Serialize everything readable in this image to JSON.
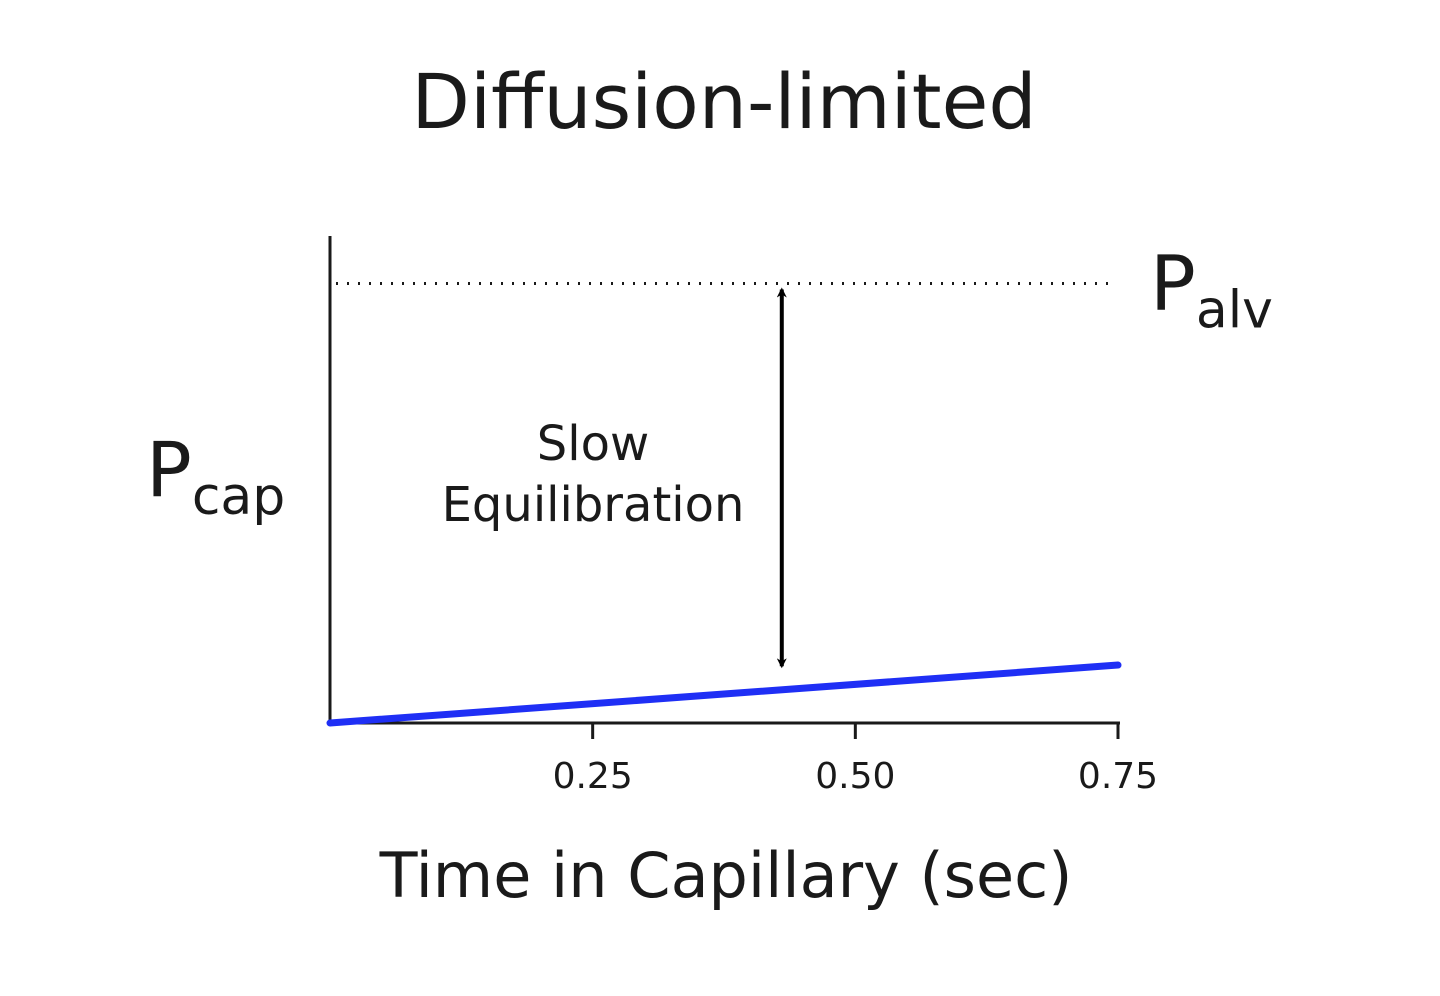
{
  "chart_data": {
    "type": "line",
    "title": "Diffusion-limited",
    "xlabel": "Time in Capillary (sec)",
    "ylabel": {
      "main": "P",
      "sub": "cap"
    },
    "xlim": [
      0,
      0.75
    ],
    "ylim": [
      0,
      1
    ],
    "xticks": [
      {
        "value": 0.25,
        "label": "0.25"
      },
      {
        "value": 0.5,
        "label": "0.50"
      },
      {
        "value": 0.75,
        "label": "0.75"
      }
    ],
    "grid": false,
    "series": [
      {
        "x": [
          0,
          0.75
        ],
        "y": [
          0,
          0.12
        ],
        "color": "#1f2ff5"
      }
    ],
    "reference_line": {
      "y": 0.91,
      "style": "dotted",
      "label": {
        "main": "P",
        "sub": "alv"
      }
    },
    "annotation": {
      "lines": [
        "Slow",
        "Equilibration"
      ],
      "arrow": {
        "x": 0.43,
        "y_from": 0.91,
        "y_to": 0.105,
        "direction": "both"
      }
    }
  }
}
